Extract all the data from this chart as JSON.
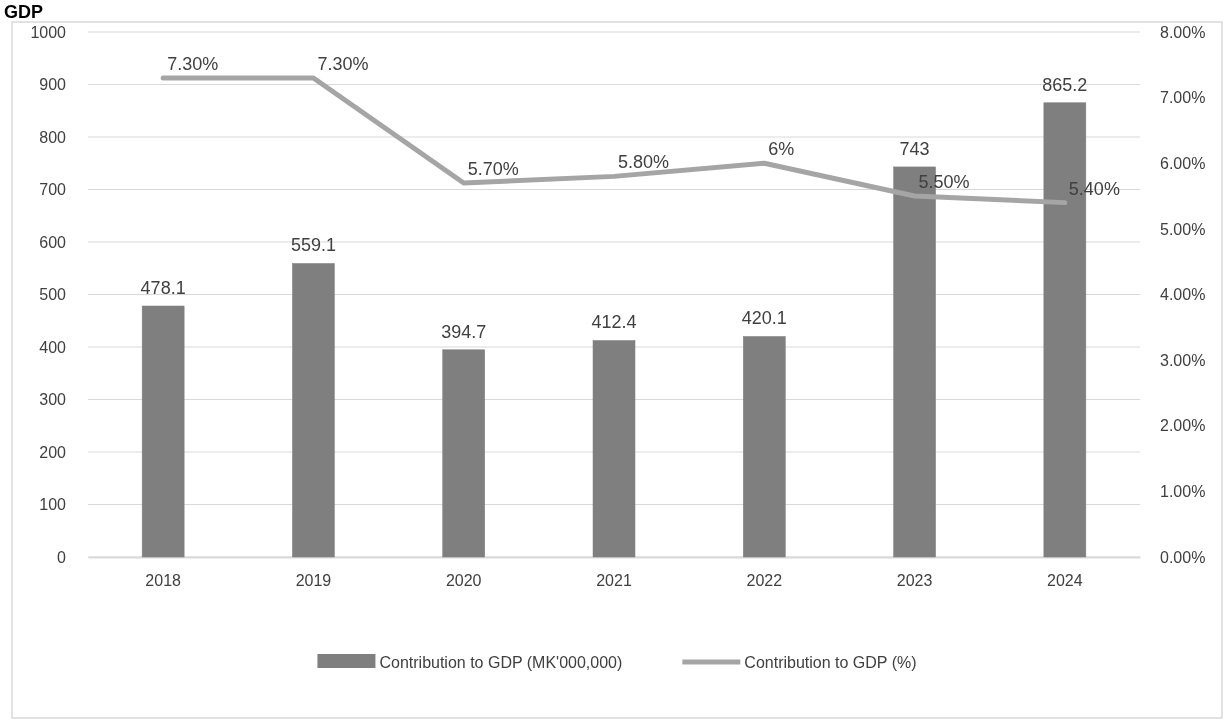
{
  "chart_data": {
    "type": "bar",
    "title": "GDP",
    "categories": [
      "2018",
      "2019",
      "2020",
      "2021",
      "2022",
      "2023",
      "2024"
    ],
    "series": [
      {
        "name": "Contribution to GDP (MK'000,000)",
        "color": "#7f7f7f",
        "values": [
          478.1,
          559.1,
          394.7,
          412.4,
          420.1,
          743,
          865.2
        ],
        "value_labels": [
          "478.1",
          "559.1",
          "394.7",
          "412.4",
          "420.1",
          "743",
          "865.2"
        ]
      },
      {
        "name": "Contribution to GDP (%)",
        "type": "line",
        "axis": "y2",
        "color": "#a5a5a5",
        "values": [
          7.3,
          7.3,
          5.7,
          5.8,
          6,
          5.5,
          5.4
        ],
        "value_labels": [
          "7.30%",
          "7.30%",
          "5.70%",
          "5.80%",
          "6%",
          "5.50%",
          "5.40%"
        ]
      }
    ],
    "ylim": [
      0,
      1000
    ],
    "yticks": [
      0,
      100,
      200,
      300,
      400,
      500,
      600,
      700,
      800,
      900,
      1000
    ],
    "y2lim": [
      0,
      8
    ],
    "y2ticks": [
      {
        "value": 0,
        "label": "0.00%"
      },
      {
        "value": 1,
        "label": "1.00%"
      },
      {
        "value": 2,
        "label": "2.00%"
      },
      {
        "value": 3,
        "label": "3.00%"
      },
      {
        "value": 4,
        "label": "4.00%"
      },
      {
        "value": 5,
        "label": "5.00%"
      },
      {
        "value": 6,
        "label": "6.00%"
      },
      {
        "value": 7,
        "label": "7.00%"
      },
      {
        "value": 8,
        "label": "8.00%"
      }
    ],
    "grid": "y",
    "legend": "bottom",
    "marker": "none",
    "line_style": "solid"
  }
}
